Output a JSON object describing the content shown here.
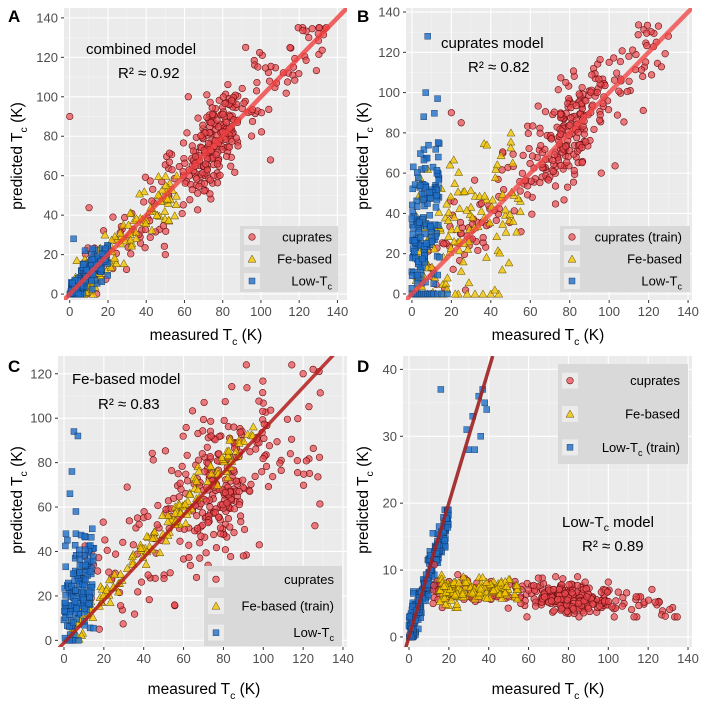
{
  "legend_keys": {
    "cuprates": "cuprates",
    "fe": "Fe-based",
    "low": "Low-T",
    "low_sub": "c"
  },
  "axis_text": {
    "x_main": "measured T",
    "y_main": "predicted T",
    "sub": "c",
    "unit": "(K)"
  },
  "colors": {
    "panel_bg": "#ebebeb",
    "cuprates": "#e8474e",
    "fe_based": "#f2c400",
    "low_tc": "#1f6fc8",
    "fit_line_A": "#f04040",
    "fit_line_B": "#f04848",
    "fit_line_C": "#b31b1b",
    "fit_line_D": "#a02020"
  },
  "chart_data": [
    {
      "panel": "A",
      "type": "scatter",
      "title_line1": "combined model",
      "title_line2": "R² ≈  0.92",
      "xlabel": "measured Tc (K)",
      "ylabel": "predicted Tc (K)",
      "xlim": [
        -3,
        145
      ],
      "ylim": [
        -3,
        145
      ],
      "xticks": [
        0,
        20,
        40,
        60,
        80,
        100,
        120,
        140
      ],
      "yticks": [
        0,
        20,
        40,
        60,
        80,
        100,
        120,
        140
      ],
      "fit_line": [
        [
          -3,
          -3
        ],
        [
          145,
          145
        ]
      ],
      "legend": {
        "position": "bottom-right",
        "entries": [
          "cuprates",
          "Fe-based",
          "Low-Tc"
        ]
      },
      "series": [
        {
          "name": "cuprates",
          "gen": {
            "seed": 11,
            "n": 330,
            "x": [
              5,
              135
            ],
            "xmode": "cuprate",
            "slope": 1.0,
            "offset": 0,
            "noise": 11,
            "xclip": [
              0,
              140
            ],
            "yclip": [
              0,
              135
            ]
          },
          "extra": [
            [
              0,
              90
            ],
            [
              92,
              125
            ],
            [
              125,
              130
            ],
            [
              130,
              132
            ],
            [
              117,
              115
            ],
            [
              105,
              68
            ],
            [
              50,
              20
            ],
            [
              62,
              100
            ]
          ]
        },
        {
          "name": "Fe-based",
          "gen": {
            "seed": 23,
            "n": 120,
            "x": [
              2,
              56
            ],
            "slope": 0.95,
            "offset": 1,
            "noise": 6,
            "xclip": [
              0,
              60
            ],
            "yclip": [
              0,
              60
            ]
          }
        },
        {
          "name": "Low-Tc",
          "gen": {
            "seed": 37,
            "n": 160,
            "x": [
              0,
              20
            ],
            "slope": 0.95,
            "offset": 0,
            "noise": 4,
            "xclip": [
              0,
              30
            ],
            "yclip": [
              0,
              32
            ]
          },
          "extra": [
            [
              2,
              28
            ],
            [
              8,
              22
            ],
            [
              12,
              23
            ]
          ]
        }
      ]
    },
    {
      "panel": "B",
      "type": "scatter",
      "title_line1": "cuprates model",
      "title_line2": "R² ≈  0.82",
      "xlabel": "measured Tc (K)",
      "ylabel": "predicted Tc (K)",
      "xlim": [
        -3,
        142
      ],
      "ylim": [
        -3,
        142
      ],
      "xticks": [
        0,
        20,
        40,
        60,
        80,
        100,
        120,
        140
      ],
      "yticks": [
        0,
        20,
        40,
        60,
        80,
        100,
        120,
        140
      ],
      "fit_line": [
        [
          -3,
          -3
        ],
        [
          142,
          142
        ]
      ],
      "legend": {
        "position": "bottom-right",
        "entries": [
          "cuprates (train)",
          "Fe-based",
          "Low-Tc"
        ]
      },
      "series": [
        {
          "name": "cuprates (train)",
          "gen": {
            "seed": 51,
            "n": 320,
            "x": [
              8,
              130
            ],
            "xmode": "cuprate",
            "slope": 0.95,
            "offset": 4,
            "noise": 12,
            "xclip": [
              0,
              140
            ],
            "yclip": [
              0,
              135
            ]
          },
          "extra": [
            [
              125,
              133
            ],
            [
              130,
              128
            ],
            [
              100,
              115
            ],
            [
              110,
              118
            ],
            [
              96,
              60
            ],
            [
              78,
              105
            ],
            [
              20,
              90
            ],
            [
              25,
              85
            ]
          ]
        },
        {
          "name": "Fe-based",
          "gen": {
            "seed": 63,
            "n": 130,
            "x": [
              2,
              55
            ],
            "slope": 0.3,
            "offset": 28,
            "noise": 18,
            "xclip": [
              0,
              58
            ],
            "yclip": [
              0,
              80
            ]
          },
          "extra": [
            [
              4,
              0
            ],
            [
              8,
              0
            ],
            [
              12,
              0
            ],
            [
              16,
              0
            ],
            [
              22,
              0
            ],
            [
              28,
              0
            ],
            [
              32,
              0
            ],
            [
              36,
              0
            ],
            [
              40,
              0
            ],
            [
              44,
              0
            ],
            [
              18,
              8
            ],
            [
              26,
              16
            ],
            [
              42,
              2
            ]
          ]
        },
        {
          "name": "Low-Tc",
          "gen": {
            "seed": 77,
            "n": 150,
            "x": [
              0,
              14
            ],
            "slope": 1.5,
            "offset": 28,
            "noise": 22,
            "xclip": [
              0,
              16
            ],
            "yclip": [
              0,
              102
            ]
          },
          "extra": [
            [
              0,
              0
            ],
            [
              1,
              0
            ],
            [
              2,
              0
            ],
            [
              3,
              0
            ],
            [
              4,
              0
            ],
            [
              5,
              0
            ],
            [
              6,
              0
            ],
            [
              7,
              0
            ],
            [
              8,
              0
            ],
            [
              9,
              0
            ],
            [
              10,
              0
            ],
            [
              11,
              0
            ],
            [
              13,
              0
            ],
            [
              15,
              0
            ],
            [
              18,
              0
            ],
            [
              8,
              128
            ],
            [
              7,
              100
            ],
            [
              6,
              88
            ]
          ]
        }
      ]
    },
    {
      "panel": "C",
      "type": "scatter",
      "title_line1": "Fe-based model",
      "title_line2": "R² ≈  0.83",
      "xlabel": "measured Tc (K)",
      "ylabel": "predicted Tc (K)",
      "xlim": [
        -3,
        142
      ],
      "ylim": [
        -3,
        128
      ],
      "xticks": [
        0,
        20,
        40,
        60,
        80,
        100,
        120,
        140
      ],
      "yticks": [
        0,
        20,
        40,
        60,
        80,
        100,
        120
      ],
      "fit_line": [
        [
          -3,
          -4
        ],
        [
          142,
          135
        ]
      ],
      "legend": {
        "position": "bottom-right",
        "entries": [
          "cuprates",
          "Fe-based (train)",
          "Low-Tc"
        ]
      },
      "series": [
        {
          "name": "cuprates",
          "gen": {
            "seed": 91,
            "n": 320,
            "x": [
              10,
              130
            ],
            "xmode": "cuprate",
            "slope": 0.55,
            "offset": 25,
            "noise": 17,
            "xclip": [
              0,
              140
            ],
            "yclip": [
              5,
              124
            ]
          },
          "extra": [
            [
              120,
              120
            ],
            [
              125,
              122
            ],
            [
              128,
              121
            ],
            [
              98,
              43
            ],
            [
              90,
              38
            ]
          ]
        },
        {
          "name": "Fe-based (train)",
          "gen": {
            "seed": 103,
            "n": 140,
            "x": [
              3,
              95
            ],
            "slope": 1.0,
            "offset": 0,
            "noise": 4,
            "xclip": [
              0,
              100
            ],
            "yclip": [
              0,
              100
            ]
          }
        },
        {
          "name": "Low-Tc",
          "gen": {
            "seed": 117,
            "n": 150,
            "x": [
              0,
              15
            ],
            "slope": 1.0,
            "offset": 14,
            "noise": 11,
            "xclip": [
              0,
              18
            ],
            "yclip": [
              0,
              60
            ]
          },
          "extra": [
            [
              5,
              94
            ],
            [
              7,
              92
            ],
            [
              4,
              76
            ],
            [
              3,
              66
            ],
            [
              6,
              58
            ],
            [
              1,
              48
            ]
          ]
        }
      ]
    },
    {
      "panel": "D",
      "type": "scatter",
      "title_line1": "Low-T",
      "title_line1_sub": "c",
      "title_line1_rest": "  model",
      "title_line2": "R² ≈  0.89",
      "xlabel": "measured Tc (K)",
      "ylabel": "predicted Tc (K)",
      "xlim": [
        -3,
        142
      ],
      "ylim": [
        -1.5,
        42
      ],
      "xticks": [
        0,
        20,
        40,
        60,
        80,
        100,
        120,
        140
      ],
      "yticks": [
        0,
        10,
        20,
        30,
        40
      ],
      "fit_line": [
        [
          -2,
          -2
        ],
        [
          42,
          42
        ]
      ],
      "legend": {
        "position": "top-right",
        "entries": [
          "cuprates",
          "Fe-based",
          "Low-Tc  (train)"
        ]
      },
      "series": [
        {
          "name": "cuprates",
          "gen": {
            "seed": 131,
            "n": 330,
            "x": [
              12,
              135
            ],
            "xmode": "cuprate",
            "slope": -0.02,
            "offset": 7.5,
            "noise": 1.2,
            "xclip": [
              10,
              140
            ],
            "yclip": [
              3,
              11
            ]
          }
        },
        {
          "name": "Fe-based",
          "gen": {
            "seed": 149,
            "n": 140,
            "x": [
              15,
              55
            ],
            "slope": 0.0,
            "offset": 7,
            "noise": 1.0,
            "xclip": [
              10,
              58
            ],
            "yclip": [
              3,
              11
            ]
          }
        },
        {
          "name": "Low-Tc  (train)",
          "gen": {
            "seed": 163,
            "n": 230,
            "x": [
              0,
              20
            ],
            "slope": 0.93,
            "offset": 0,
            "noise": 1.5,
            "xclip": [
              0,
              22
            ],
            "yclip": [
              0,
              19
            ]
          },
          "extra": [
            [
              29,
              31
            ],
            [
              32,
              33
            ],
            [
              35,
              36
            ],
            [
              37,
              37
            ],
            [
              38,
              35
            ],
            [
              33,
              28
            ],
            [
              30,
              28
            ],
            [
              36,
              30
            ],
            [
              16,
              37
            ],
            [
              39,
              34
            ],
            [
              12,
              15.5
            ],
            [
              14,
              8
            ]
          ]
        }
      ]
    }
  ]
}
